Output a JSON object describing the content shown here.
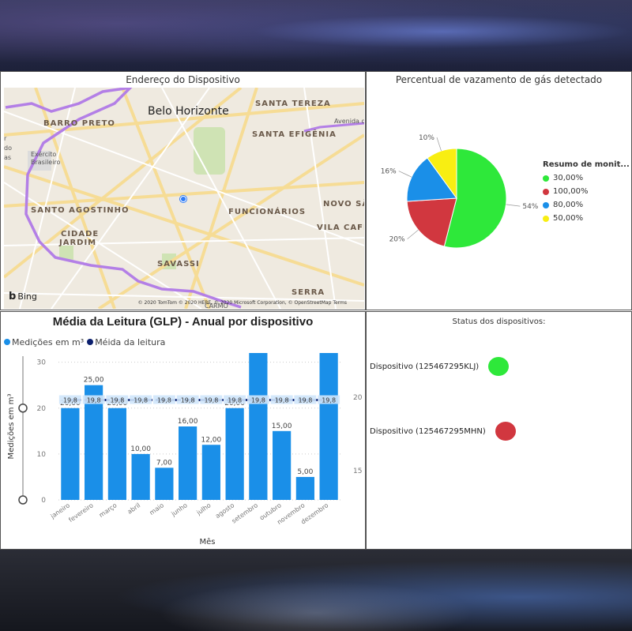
{
  "map": {
    "title": "Endereço do Dispositivo",
    "labels": {
      "city": "Belo Horizonte",
      "barro_preto": "BARRO PRETO",
      "santa_tereza": "SANTA TEREZA",
      "santa_efigenia": "SANTA EFIGÊNIA",
      "avenida": "Avenida do",
      "santo_agostinho": "SANTO AGOSTINHO",
      "funcionarios": "FUNCIONÁRIOS",
      "novo_sa": "NOVO SÃ",
      "cidade": "CIDADE",
      "jardim": "JARDIM",
      "vila_cafe": "VILA CAFÉ",
      "savassi": "SAVASSI",
      "serra": "SERRA",
      "carmo": "CARMO",
      "exercito": "Exército",
      "brasileiro": "Brasileiro",
      "edge_r": "r",
      "edge_do": "do",
      "edge_as": "as"
    },
    "bing_label": "Bing",
    "copyright": "© 2020 TomTom © 2020 HERE, © 2020 Microsoft Corporation, © OpenStreetMap  Terms",
    "colors": {
      "pin": "#2f7cf6",
      "route": "#b37fe6"
    }
  },
  "pie": {
    "title": "Percentual de vazamento de gás detectado",
    "legend_title": "Resumo de monit...",
    "slices": [
      {
        "label": "30,00%",
        "percent": 54,
        "percent_label": "54%",
        "color": "#2ee83a"
      },
      {
        "label": "100,00%",
        "percent": 20,
        "percent_label": "20%",
        "color": "#d1373f"
      },
      {
        "label": "80,00%",
        "percent": 16,
        "percent_label": "16%",
        "color": "#1a8fe8"
      },
      {
        "label": "50,00%",
        "percent": 10,
        "percent_label": "10%",
        "color": "#f8ee12"
      }
    ]
  },
  "chart_data": {
    "type": "bar",
    "title": "Média da Leitura (GLP) - Anual por dispositivo",
    "xlabel": "Mês",
    "ylabel": "Medições em m³",
    "categories": [
      "janeiro",
      "fevereiro",
      "março",
      "abril",
      "maio",
      "junho",
      "julho",
      "agosto",
      "setembro",
      "outubro",
      "novembro",
      "dezembro"
    ],
    "series": [
      {
        "name": "Medições em m³",
        "color": "#1a8fe8",
        "values": [
          20,
          25,
          20,
          10,
          7,
          16,
          12,
          20,
          32,
          15,
          5,
          32
        ],
        "labels": [
          "20,00",
          "25,00",
          "20,00",
          "10,00",
          "7,00",
          "16,00",
          "12,00",
          "20,00",
          "",
          "15,00",
          "5,00",
          ""
        ]
      },
      {
        "name": "Méida da leitura",
        "color": "#0b1f6e",
        "axis": "right",
        "values": [
          19.8,
          19.8,
          19.8,
          19.8,
          19.8,
          19.8,
          19.8,
          19.8,
          19.8,
          19.8,
          19.8,
          19.8
        ],
        "labels": [
          "19,8",
          "19,8",
          "19,8",
          "19,8",
          "19,8",
          "19,8",
          "19,8",
          "19,8",
          "19,8",
          "19,8",
          "19,8",
          "19,8"
        ]
      }
    ],
    "ylim": [
      0,
      32
    ],
    "yticks": [
      0,
      10,
      20,
      30
    ],
    "y2lim": [
      13,
      23
    ],
    "y2ticks": [
      15,
      20
    ],
    "grid": true,
    "legend": "top-left"
  },
  "status": {
    "title": "Status dos dispositivos:",
    "devices": [
      {
        "label": "Dispositivo (125467295KLJ)",
        "color": "#2ee83a"
      },
      {
        "label": "Dispositivo (125467295MHN)",
        "color": "#d1373f"
      }
    ]
  }
}
